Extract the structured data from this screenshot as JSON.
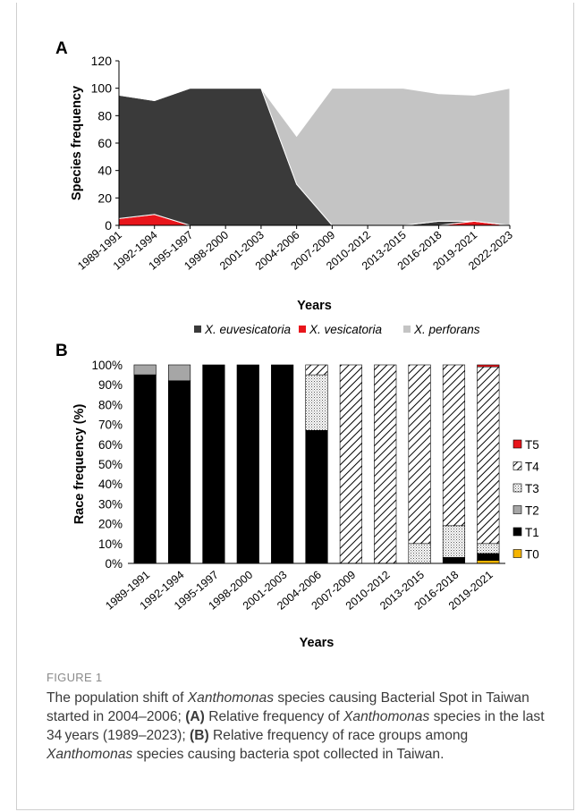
{
  "chart_data": [
    {
      "panel": "A",
      "type": "area",
      "ylabel": "Species frequency",
      "xlabel": "Years",
      "ylim": [
        0,
        120
      ],
      "yticks": [
        0,
        20,
        40,
        60,
        80,
        100,
        120
      ],
      "categories": [
        "1989-1991",
        "1992-1994",
        "1995-1997",
        "1998-2000",
        "2001-2003",
        "2004-2006",
        "2007-2009",
        "2010-2012",
        "2013-2015",
        "2016-2018",
        "2019-2021",
        "2022-2023"
      ],
      "series": [
        {
          "name": "X. vesicatoria",
          "color": "#e8151b",
          "values": [
            5,
            8,
            0,
            0,
            0,
            0,
            0,
            0,
            0,
            0,
            3,
            0
          ]
        },
        {
          "name": "X. euvesicatoria",
          "color": "#3a3a3a",
          "values": [
            90,
            83,
            100,
            100,
            100,
            30,
            0,
            0,
            0,
            3,
            0,
            0
          ]
        },
        {
          "name": "X. perforans",
          "color": "#c4c4c4",
          "values": [
            0,
            0,
            0,
            0,
            0,
            35,
            100,
            100,
            100,
            93,
            92,
            100
          ]
        }
      ],
      "legend_position": "top"
    },
    {
      "panel": "B",
      "type": "bar",
      "stacked": true,
      "ylabel": "Race frequency (%)",
      "xlabel": "Years",
      "ylim": [
        0,
        100
      ],
      "yticks": [
        "0%",
        "10%",
        "20%",
        "30%",
        "40%",
        "50%",
        "60%",
        "70%",
        "80%",
        "90%",
        "100%"
      ],
      "categories": [
        "1989-1991",
        "1992-1994",
        "1995-1997",
        "1998-2000",
        "2001-2003",
        "2004-2006",
        "2007-2009",
        "2010-2012",
        "2013-2015",
        "2016-2018",
        "2019-2021"
      ],
      "series": [
        {
          "name": "T0",
          "color": "#f5b400",
          "values": [
            0,
            0,
            0,
            0,
            0,
            0,
            0,
            0,
            0,
            0,
            1.5
          ]
        },
        {
          "name": "T1",
          "color": "#000000",
          "values": [
            95,
            92,
            100,
            100,
            100,
            67,
            0,
            0,
            0,
            3,
            3.5
          ]
        },
        {
          "name": "T2",
          "color": "#a6a6a6",
          "values": [
            5,
            8,
            0,
            0,
            0,
            0,
            0,
            0,
            0,
            0,
            0
          ]
        },
        {
          "name": "T3",
          "color": "dotted",
          "values": [
            0,
            0,
            0,
            0,
            0,
            28,
            0,
            0,
            10,
            16,
            5
          ]
        },
        {
          "name": "T4",
          "color": "hatched",
          "values": [
            0,
            0,
            0,
            0,
            0,
            5,
            100,
            100,
            90,
            81,
            89
          ]
        },
        {
          "name": "T5",
          "color": "#e8151b",
          "values": [
            0,
            0,
            0,
            0,
            0,
            0,
            0,
            0,
            0,
            0,
            1
          ]
        }
      ],
      "legend_position": "right"
    }
  ],
  "caption": {
    "figure_label": "FIGURE 1",
    "part1": "The population shift of ",
    "genus1": "Xanthomonas",
    "part2": " species causing Bacterial Spot in Taiwan started in 2004–2006; ",
    "labelA": "(A)",
    "part3": " Relative frequency of ",
    "genus2": "Xanthomonas",
    "part4": " species in the last 34 years (1989–2023); ",
    "labelB": "(B)",
    "part5": " Relative frequency of race groups among ",
    "genus3": "Xanthomonas",
    "part6": " species causing bacteria spot collected in Taiwan."
  }
}
